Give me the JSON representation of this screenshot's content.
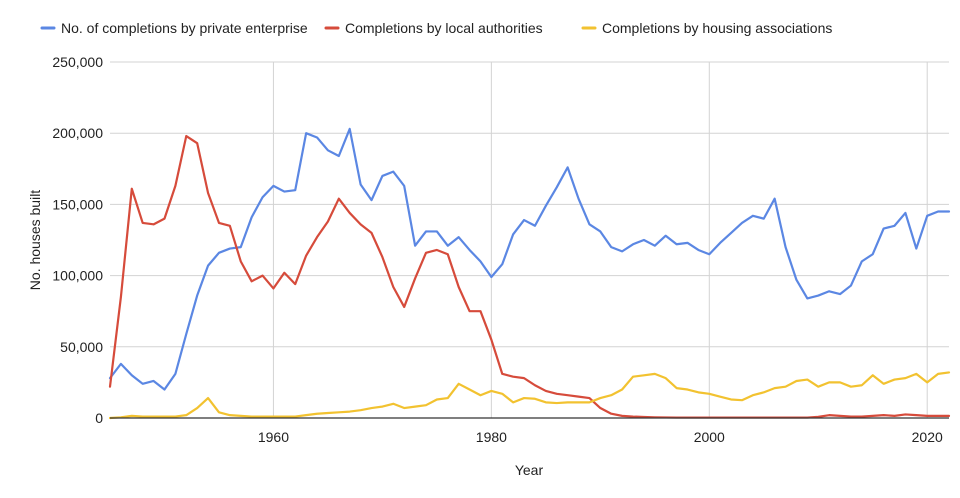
{
  "chart_data": {
    "type": "line",
    "xlabel": "Year",
    "ylabel": "No. houses built",
    "xlim": [
      1945,
      2022
    ],
    "ylim": [
      0,
      250000
    ],
    "x_ticks": [
      1960,
      1980,
      2000,
      2020
    ],
    "y_ticks": [
      0,
      50000,
      100000,
      150000,
      200000,
      250000
    ],
    "x_tick_labels": [
      "1960",
      "1980",
      "2000",
      "2020"
    ],
    "y_tick_labels": [
      "0",
      "50,000",
      "100,000",
      "150,000",
      "200,000",
      "250,000"
    ],
    "grid": true,
    "legend_position": "top",
    "x": [
      1945,
      1946,
      1947,
      1948,
      1949,
      1950,
      1951,
      1952,
      1953,
      1954,
      1955,
      1956,
      1957,
      1958,
      1959,
      1960,
      1961,
      1962,
      1963,
      1964,
      1965,
      1966,
      1967,
      1968,
      1969,
      1970,
      1971,
      1972,
      1973,
      1974,
      1975,
      1976,
      1977,
      1978,
      1979,
      1980,
      1981,
      1982,
      1983,
      1984,
      1985,
      1986,
      1987,
      1988,
      1989,
      1990,
      1991,
      1992,
      1993,
      1994,
      1995,
      1996,
      1997,
      1998,
      1999,
      2000,
      2001,
      2002,
      2003,
      2004,
      2005,
      2006,
      2007,
      2008,
      2009,
      2010,
      2011,
      2012,
      2013,
      2014,
      2015,
      2016,
      2017,
      2018,
      2019,
      2020,
      2021,
      2022
    ],
    "series": [
      {
        "name": "No. of completions by private enterprise",
        "color": "#5B87E3",
        "values": [
          28000,
          38000,
          30000,
          24000,
          26000,
          20000,
          31000,
          59000,
          86000,
          107000,
          116000,
          119000,
          120000,
          141000,
          155000,
          163000,
          159000,
          160000,
          200000,
          197000,
          188000,
          184000,
          203000,
          164000,
          153000,
          170000,
          173000,
          163000,
          121000,
          131000,
          131000,
          121000,
          127000,
          118000,
          110000,
          99000,
          108000,
          129000,
          139000,
          135000,
          149000,
          162000,
          176000,
          154000,
          136000,
          131000,
          120000,
          117000,
          122000,
          125000,
          121000,
          128000,
          122000,
          123000,
          118000,
          115000,
          123000,
          130000,
          137000,
          142000,
          140000,
          154000,
          120000,
          97000,
          84000,
          86000,
          89000,
          87000,
          93000,
          110000,
          115000,
          133000,
          135000,
          144000,
          119000,
          142000,
          145000,
          145000
        ]
      },
      {
        "name": "Completions by local authorities",
        "color": "#D64B3B",
        "values": [
          22000,
          85000,
          161000,
          137000,
          136000,
          140000,
          163000,
          198000,
          193000,
          158000,
          137000,
          135000,
          110000,
          96000,
          100000,
          91000,
          102000,
          94000,
          114000,
          127000,
          138000,
          154000,
          144000,
          136000,
          130000,
          113000,
          92000,
          78000,
          98000,
          116000,
          118000,
          115000,
          92000,
          75000,
          75000,
          55000,
          31000,
          29000,
          28000,
          23000,
          19000,
          17000,
          16000,
          15000,
          14000,
          7000,
          3000,
          1500,
          1000,
          700,
          500,
          400,
          300,
          300,
          300,
          300,
          300,
          300,
          300,
          300,
          300,
          300,
          300,
          300,
          300,
          800,
          2000,
          1500,
          1000,
          1000,
          1500,
          2000,
          1500,
          2500,
          2000,
          1500,
          1500,
          1500
        ]
      },
      {
        "name": "Completions by housing associations",
        "color": "#F2C230",
        "values": [
          0,
          500,
          1500,
          1000,
          1000,
          1000,
          1000,
          2000,
          7000,
          14000,
          4000,
          2000,
          1500,
          1000,
          1000,
          1000,
          1000,
          1000,
          2000,
          3000,
          3500,
          4000,
          4500,
          5500,
          7000,
          8000,
          10000,
          7000,
          8000,
          9000,
          13000,
          14000,
          24000,
          20000,
          16000,
          19000,
          17000,
          11000,
          14000,
          13500,
          11000,
          10500,
          11000,
          11000,
          11000,
          14000,
          16000,
          20000,
          29000,
          30000,
          31000,
          28000,
          21000,
          20000,
          18000,
          17000,
          15000,
          13000,
          12500,
          16000,
          18000,
          21000,
          22000,
          26000,
          27000,
          22000,
          25000,
          25000,
          22000,
          23000,
          30000,
          24000,
          27000,
          28000,
          31000,
          25000,
          31000,
          32000
        ]
      }
    ]
  }
}
